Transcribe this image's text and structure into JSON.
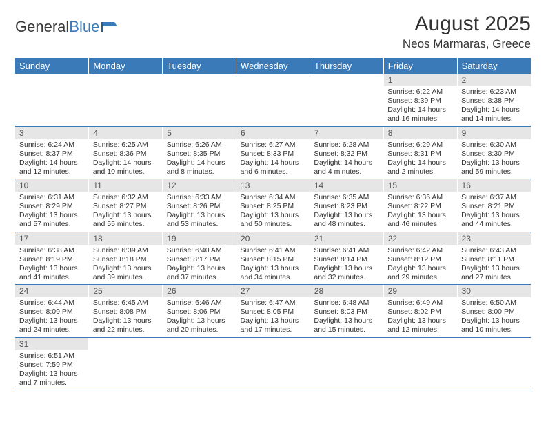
{
  "logo": {
    "text1": "General",
    "text2": "Blue"
  },
  "title": "August 2025",
  "location": "Neos Marmaras, Greece",
  "colors": {
    "header_bg": "#3a7ab8",
    "header_fg": "#ffffff",
    "daynum_bg": "#e6e6e6",
    "row_border": "#3a7ab8",
    "text": "#333333"
  },
  "typography": {
    "title_fontsize": 30,
    "location_fontsize": 17,
    "th_fontsize": 13,
    "cell_fontsize": 10.5
  },
  "daysOfWeek": [
    "Sunday",
    "Monday",
    "Tuesday",
    "Wednesday",
    "Thursday",
    "Friday",
    "Saturday"
  ],
  "weeks": [
    [
      null,
      null,
      null,
      null,
      null,
      {
        "n": "1",
        "sr": "Sunrise: 6:22 AM",
        "ss": "Sunset: 8:39 PM",
        "d1": "Daylight: 14 hours",
        "d2": "and 16 minutes."
      },
      {
        "n": "2",
        "sr": "Sunrise: 6:23 AM",
        "ss": "Sunset: 8:38 PM",
        "d1": "Daylight: 14 hours",
        "d2": "and 14 minutes."
      }
    ],
    [
      {
        "n": "3",
        "sr": "Sunrise: 6:24 AM",
        "ss": "Sunset: 8:37 PM",
        "d1": "Daylight: 14 hours",
        "d2": "and 12 minutes."
      },
      {
        "n": "4",
        "sr": "Sunrise: 6:25 AM",
        "ss": "Sunset: 8:36 PM",
        "d1": "Daylight: 14 hours",
        "d2": "and 10 minutes."
      },
      {
        "n": "5",
        "sr": "Sunrise: 6:26 AM",
        "ss": "Sunset: 8:35 PM",
        "d1": "Daylight: 14 hours",
        "d2": "and 8 minutes."
      },
      {
        "n": "6",
        "sr": "Sunrise: 6:27 AM",
        "ss": "Sunset: 8:33 PM",
        "d1": "Daylight: 14 hours",
        "d2": "and 6 minutes."
      },
      {
        "n": "7",
        "sr": "Sunrise: 6:28 AM",
        "ss": "Sunset: 8:32 PM",
        "d1": "Daylight: 14 hours",
        "d2": "and 4 minutes."
      },
      {
        "n": "8",
        "sr": "Sunrise: 6:29 AM",
        "ss": "Sunset: 8:31 PM",
        "d1": "Daylight: 14 hours",
        "d2": "and 2 minutes."
      },
      {
        "n": "9",
        "sr": "Sunrise: 6:30 AM",
        "ss": "Sunset: 8:30 PM",
        "d1": "Daylight: 13 hours",
        "d2": "and 59 minutes."
      }
    ],
    [
      {
        "n": "10",
        "sr": "Sunrise: 6:31 AM",
        "ss": "Sunset: 8:29 PM",
        "d1": "Daylight: 13 hours",
        "d2": "and 57 minutes."
      },
      {
        "n": "11",
        "sr": "Sunrise: 6:32 AM",
        "ss": "Sunset: 8:27 PM",
        "d1": "Daylight: 13 hours",
        "d2": "and 55 minutes."
      },
      {
        "n": "12",
        "sr": "Sunrise: 6:33 AM",
        "ss": "Sunset: 8:26 PM",
        "d1": "Daylight: 13 hours",
        "d2": "and 53 minutes."
      },
      {
        "n": "13",
        "sr": "Sunrise: 6:34 AM",
        "ss": "Sunset: 8:25 PM",
        "d1": "Daylight: 13 hours",
        "d2": "and 50 minutes."
      },
      {
        "n": "14",
        "sr": "Sunrise: 6:35 AM",
        "ss": "Sunset: 8:23 PM",
        "d1": "Daylight: 13 hours",
        "d2": "and 48 minutes."
      },
      {
        "n": "15",
        "sr": "Sunrise: 6:36 AM",
        "ss": "Sunset: 8:22 PM",
        "d1": "Daylight: 13 hours",
        "d2": "and 46 minutes."
      },
      {
        "n": "16",
        "sr": "Sunrise: 6:37 AM",
        "ss": "Sunset: 8:21 PM",
        "d1": "Daylight: 13 hours",
        "d2": "and 44 minutes."
      }
    ],
    [
      {
        "n": "17",
        "sr": "Sunrise: 6:38 AM",
        "ss": "Sunset: 8:19 PM",
        "d1": "Daylight: 13 hours",
        "d2": "and 41 minutes."
      },
      {
        "n": "18",
        "sr": "Sunrise: 6:39 AM",
        "ss": "Sunset: 8:18 PM",
        "d1": "Daylight: 13 hours",
        "d2": "and 39 minutes."
      },
      {
        "n": "19",
        "sr": "Sunrise: 6:40 AM",
        "ss": "Sunset: 8:17 PM",
        "d1": "Daylight: 13 hours",
        "d2": "and 37 minutes."
      },
      {
        "n": "20",
        "sr": "Sunrise: 6:41 AM",
        "ss": "Sunset: 8:15 PM",
        "d1": "Daylight: 13 hours",
        "d2": "and 34 minutes."
      },
      {
        "n": "21",
        "sr": "Sunrise: 6:41 AM",
        "ss": "Sunset: 8:14 PM",
        "d1": "Daylight: 13 hours",
        "d2": "and 32 minutes."
      },
      {
        "n": "22",
        "sr": "Sunrise: 6:42 AM",
        "ss": "Sunset: 8:12 PM",
        "d1": "Daylight: 13 hours",
        "d2": "and 29 minutes."
      },
      {
        "n": "23",
        "sr": "Sunrise: 6:43 AM",
        "ss": "Sunset: 8:11 PM",
        "d1": "Daylight: 13 hours",
        "d2": "and 27 minutes."
      }
    ],
    [
      {
        "n": "24",
        "sr": "Sunrise: 6:44 AM",
        "ss": "Sunset: 8:09 PM",
        "d1": "Daylight: 13 hours",
        "d2": "and 24 minutes."
      },
      {
        "n": "25",
        "sr": "Sunrise: 6:45 AM",
        "ss": "Sunset: 8:08 PM",
        "d1": "Daylight: 13 hours",
        "d2": "and 22 minutes."
      },
      {
        "n": "26",
        "sr": "Sunrise: 6:46 AM",
        "ss": "Sunset: 8:06 PM",
        "d1": "Daylight: 13 hours",
        "d2": "and 20 minutes."
      },
      {
        "n": "27",
        "sr": "Sunrise: 6:47 AM",
        "ss": "Sunset: 8:05 PM",
        "d1": "Daylight: 13 hours",
        "d2": "and 17 minutes."
      },
      {
        "n": "28",
        "sr": "Sunrise: 6:48 AM",
        "ss": "Sunset: 8:03 PM",
        "d1": "Daylight: 13 hours",
        "d2": "and 15 minutes."
      },
      {
        "n": "29",
        "sr": "Sunrise: 6:49 AM",
        "ss": "Sunset: 8:02 PM",
        "d1": "Daylight: 13 hours",
        "d2": "and 12 minutes."
      },
      {
        "n": "30",
        "sr": "Sunrise: 6:50 AM",
        "ss": "Sunset: 8:00 PM",
        "d1": "Daylight: 13 hours",
        "d2": "and 10 minutes."
      }
    ],
    [
      {
        "n": "31",
        "sr": "Sunrise: 6:51 AM",
        "ss": "Sunset: 7:59 PM",
        "d1": "Daylight: 13 hours",
        "d2": "and 7 minutes."
      },
      null,
      null,
      null,
      null,
      null,
      null
    ]
  ]
}
